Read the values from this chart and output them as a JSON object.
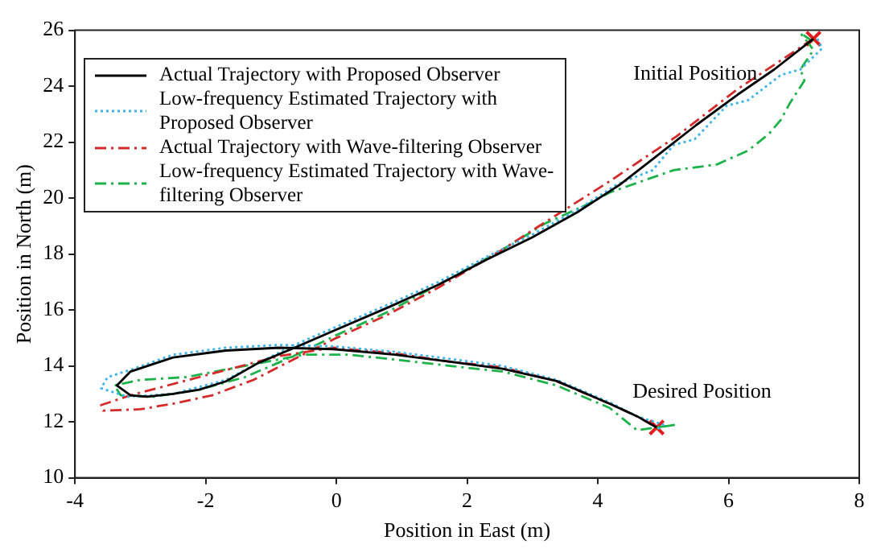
{
  "chart_data": {
    "type": "line",
    "xlabel": "Position in East (m)",
    "ylabel": "Position in North (m)",
    "xlim": [
      -4,
      8
    ],
    "xticks": [
      -4,
      -2,
      0,
      2,
      4,
      6,
      8
    ],
    "ylim": [
      10,
      26
    ],
    "yticks": [
      10,
      12,
      14,
      16,
      18,
      20,
      22,
      24,
      26
    ],
    "grid": false,
    "legend": "top left",
    "marker": "none",
    "annotations": [
      {
        "text": "Initial Position",
        "x": 7.3,
        "y": 25.7
      },
      {
        "text": "Desired Position",
        "x": 4.9,
        "y": 11.8
      }
    ],
    "series": [
      {
        "name": "Actual Trajectory with Proposed Observer",
        "color": "#000000",
        "line_style": "solid",
        "x": [
          7.3,
          6.7,
          6.14,
          5.5,
          4.9,
          4.35,
          3.69,
          3.0,
          2.3,
          1.56,
          0.8,
          0,
          -0.64,
          -1.2,
          -1.69,
          -2.1,
          -2.5,
          -2.9,
          -3.15,
          -3.36,
          -3.15,
          -2.5,
          -1.69,
          -0.88,
          -0.05,
          0.9,
          1.74,
          2.54,
          3.37,
          4.18,
          4.6,
          4.9
        ],
        "values": [
          25.7,
          24.6,
          23.7,
          22.6,
          21.5,
          20.5,
          19.5,
          18.6,
          17.8,
          16.9,
          16.1,
          15.3,
          14.65,
          14.1,
          13.45,
          13.15,
          13.0,
          12.9,
          12.95,
          13.3,
          13.8,
          14.3,
          14.55,
          14.65,
          14.6,
          14.4,
          14.15,
          13.9,
          13.46,
          12.65,
          12.2,
          11.8
        ]
      },
      {
        "name": "Low-frequency Estimated Trajectory with Proposed Observer",
        "color": "#3cb4e6",
        "line_style": "dotted",
        "x": [
          7.36,
          7.43,
          7.1,
          6.8,
          6.3,
          5.97,
          5.48,
          5.16,
          4.84,
          4.3,
          3.7,
          3.0,
          2.3,
          1.56,
          0.8,
          0,
          -0.64,
          -1.2,
          -1.69,
          -2.5,
          -3.2,
          -3.6,
          -3.5,
          -3.1,
          -2.5,
          -1.69,
          -0.88,
          -0.05,
          0.9,
          1.74,
          2.54,
          3.37,
          4.18,
          4.6,
          5.0,
          4.9
        ],
        "values": [
          25.7,
          25.35,
          24.6,
          24.4,
          23.5,
          23.3,
          22.1,
          21.9,
          21.0,
          20.5,
          19.6,
          18.7,
          17.9,
          17.0,
          16.2,
          15.4,
          14.75,
          14.1,
          13.5,
          13.0,
          12.9,
          13.2,
          13.6,
          13.9,
          14.4,
          14.65,
          14.75,
          14.7,
          14.5,
          14.25,
          14.0,
          13.5,
          12.7,
          12.2,
          11.9,
          11.7
        ]
      },
      {
        "name": "Actual Trajectory with Wave-filtering Observer",
        "color": "#d42a2a",
        "line_style": "dashed",
        "x": [
          7.3,
          6.14,
          5.2,
          4.18,
          3.37,
          2.5,
          1.56,
          0.76,
          0,
          -0.6,
          -1.27,
          -1.9,
          -2.5,
          -3.0,
          -3.57,
          -3.6,
          -3.15,
          -2.1,
          -0.88,
          -0.05,
          0.9,
          1.74,
          2.54,
          3.37,
          4.18,
          4.6,
          4.9
        ],
        "values": [
          25.7,
          23.9,
          22.2,
          20.6,
          19.4,
          18.1,
          16.8,
          15.8,
          15.0,
          14.3,
          13.5,
          12.95,
          12.65,
          12.45,
          12.4,
          12.6,
          12.95,
          13.6,
          14.35,
          14.65,
          14.45,
          14.15,
          13.95,
          13.45,
          12.65,
          12.2,
          11.8
        ]
      },
      {
        "name": "Low-frequency Estimated Trajectory with Wave-filtering Observer",
        "color": "#1db34a",
        "line_style": "dashed",
        "x": [
          7.29,
          7.1,
          7.3,
          7.1,
          7.16,
          6.94,
          6.8,
          6.62,
          6.3,
          5.82,
          5.16,
          4.67,
          4.18,
          3.86,
          3.2,
          2.5,
          1.56,
          0.76,
          0,
          -0.7,
          -1.4,
          -2.1,
          -2.8,
          -3.3,
          -3.4,
          -3.0,
          -2.3,
          -1.4,
          -0.5,
          0.2,
          1.0,
          1.74,
          2.54,
          3.37,
          4.18,
          4.6,
          5.2,
          4.9
        ],
        "values": [
          25.6,
          25.9,
          25.3,
          24.6,
          24.2,
          23.4,
          22.8,
          22.3,
          21.7,
          21.2,
          21.0,
          20.6,
          20.2,
          19.8,
          19.1,
          18.1,
          16.9,
          15.9,
          15.1,
          14.3,
          13.6,
          13.15,
          12.9,
          12.95,
          13.3,
          13.5,
          13.6,
          14.0,
          14.4,
          14.4,
          14.2,
          14.0,
          13.8,
          13.3,
          12.5,
          11.7,
          11.9,
          11.8
        ]
      },
      {
        "type": "scatter",
        "color": "#e0201e",
        "marker": "cross",
        "x": [
          7.3,
          4.9
        ],
        "values": [
          25.7,
          11.8
        ]
      }
    ]
  }
}
